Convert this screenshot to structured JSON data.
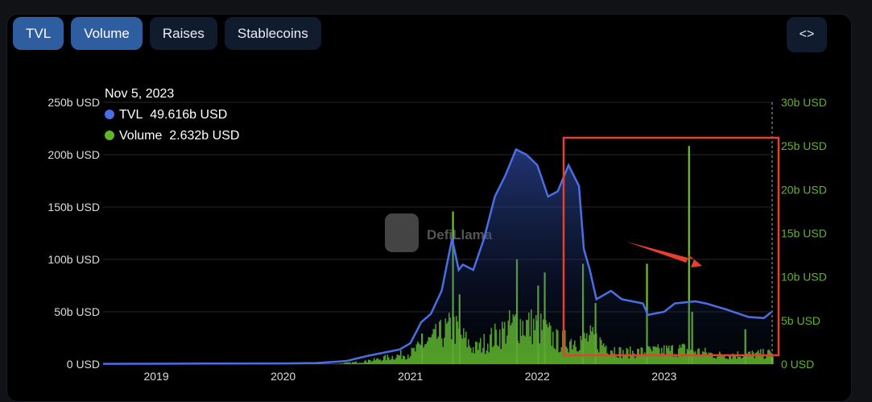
{
  "tabs": [
    {
      "label": "TVL",
      "active": true
    },
    {
      "label": "Volume",
      "active": true
    },
    {
      "label": "Raises",
      "active": false
    },
    {
      "label": "Stablecoins",
      "active": false
    }
  ],
  "embed_icon": "code-brackets-icon",
  "watermark": "DefiLlama",
  "tooltip": {
    "date": "Nov 5, 2023",
    "tvl_label": "TVL",
    "tvl_value": "49.616b USD",
    "volume_label": "Volume",
    "volume_value": "2.632b USD"
  },
  "colors": {
    "tvl": "#4a6fe3",
    "volume": "#5fb626",
    "highlight": "#e8402f",
    "arrow": "#e8402f"
  },
  "chart_data": {
    "type": "area",
    "x_ticks": [
      "2019",
      "2020",
      "2021",
      "2022",
      "2023"
    ],
    "y_left_ticks": [
      "0 USD",
      "50b USD",
      "100b USD",
      "150b USD",
      "200b USD",
      "250b USD"
    ],
    "y_right_ticks": [
      "0 USD",
      "5b USD",
      "10b USD",
      "15b USD",
      "20b USD",
      "25b USD",
      "30b USD"
    ],
    "y_left_lim": [
      0,
      250
    ],
    "y_right_lim": [
      0,
      30
    ],
    "x_lim": [
      "2018-08-01",
      "2023-11-10"
    ],
    "grid": true,
    "series": [
      {
        "name": "TVL",
        "axis": "left",
        "points": [
          [
            "2018-08-01",
            0.3
          ],
          [
            "2019-01-01",
            0.4
          ],
          [
            "2019-07-01",
            0.6
          ],
          [
            "2020-01-01",
            0.7
          ],
          [
            "2020-04-01",
            1.0
          ],
          [
            "2020-07-01",
            3
          ],
          [
            "2020-09-01",
            8
          ],
          [
            "2020-12-01",
            14
          ],
          [
            "2021-01-01",
            20
          ],
          [
            "2021-02-01",
            40
          ],
          [
            "2021-03-01",
            48
          ],
          [
            "2021-04-01",
            70
          ],
          [
            "2021-05-01",
            120
          ],
          [
            "2021-05-20",
            90
          ],
          [
            "2021-06-01",
            95
          ],
          [
            "2021-07-01",
            90
          ],
          [
            "2021-08-01",
            120
          ],
          [
            "2021-09-01",
            160
          ],
          [
            "2021-10-01",
            180
          ],
          [
            "2021-11-01",
            205
          ],
          [
            "2021-12-01",
            200
          ],
          [
            "2022-01-01",
            190
          ],
          [
            "2022-02-01",
            160
          ],
          [
            "2022-03-01",
            165
          ],
          [
            "2022-04-01",
            190
          ],
          [
            "2022-05-01",
            170
          ],
          [
            "2022-05-15",
            110
          ],
          [
            "2022-06-01",
            90
          ],
          [
            "2022-06-20",
            62
          ],
          [
            "2022-08-01",
            70
          ],
          [
            "2022-09-01",
            62
          ],
          [
            "2022-10-01",
            60
          ],
          [
            "2022-11-01",
            58
          ],
          [
            "2022-11-15",
            47
          ],
          [
            "2023-01-01",
            50
          ],
          [
            "2023-02-01",
            58
          ],
          [
            "2023-04-01",
            60
          ],
          [
            "2023-05-01",
            58
          ],
          [
            "2023-07-01",
            52
          ],
          [
            "2023-09-01",
            45
          ],
          [
            "2023-10-15",
            44
          ],
          [
            "2023-11-05",
            49.616
          ]
        ]
      },
      {
        "name": "Volume",
        "axis": "right",
        "spikes": [
          [
            "2020-09-01",
            0.5
          ],
          [
            "2021-02-01",
            3.5
          ],
          [
            "2021-05-01",
            17.5
          ],
          [
            "2021-05-20",
            8
          ],
          [
            "2021-11-01",
            12
          ],
          [
            "2022-01-01",
            9
          ],
          [
            "2022-01-20",
            10.5
          ],
          [
            "2022-05-10",
            11.5
          ],
          [
            "2022-06-15",
            7
          ],
          [
            "2022-11-10",
            11.5
          ],
          [
            "2023-03-11",
            25
          ],
          [
            "2023-03-20",
            6
          ],
          [
            "2023-08-20",
            4
          ]
        ]
      }
    ]
  }
}
